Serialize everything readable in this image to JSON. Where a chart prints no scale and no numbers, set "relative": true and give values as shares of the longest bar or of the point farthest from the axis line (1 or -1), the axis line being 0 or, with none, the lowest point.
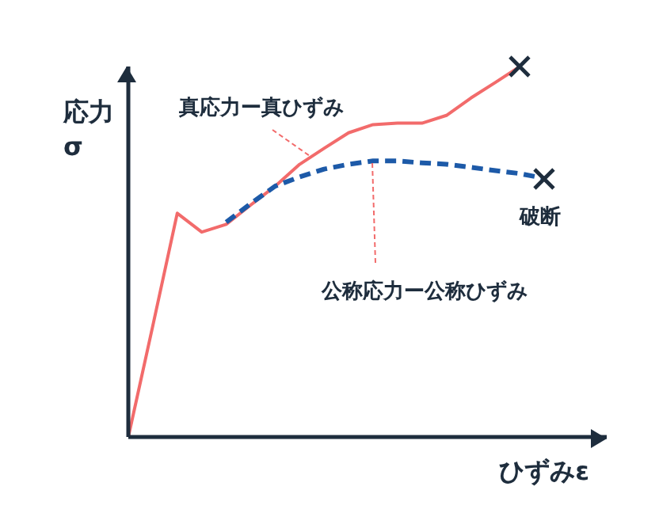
{
  "chart_data": {
    "type": "line",
    "relative": true,
    "ylabel": "応力\nσ",
    "xlabel": "ひずみε",
    "grid": false,
    "legend": false,
    "categories": [
      null,
      null,
      null,
      null,
      null,
      null,
      null,
      null,
      null,
      null,
      null,
      null,
      null,
      null,
      null,
      null,
      null,
      null
    ],
    "series": [
      {
        "color": "#f26b6b",
        "line_style": "solid",
        "values": [
          0,
          0.3,
          0.604,
          0.553,
          0.574,
          0.626,
          0.677,
          0.736,
          0.779,
          0.821,
          0.843,
          0.847,
          0.847,
          0.868,
          0.915,
          0.957,
          1,
          null
        ]
      },
      {
        "color": "#1d5aa8",
        "line_style": "dashed",
        "values": [
          null,
          null,
          null,
          null,
          0.58,
          0.63,
          0.677,
          0.702,
          0.723,
          0.736,
          0.745,
          0.745,
          0.74,
          0.736,
          0.728,
          0.719,
          0.711,
          0.698
        ]
      }
    ],
    "annotations": [
      "真応力ー真ひずみ",
      "公称応力ー公称ひずみ",
      "破断"
    ]
  }
}
